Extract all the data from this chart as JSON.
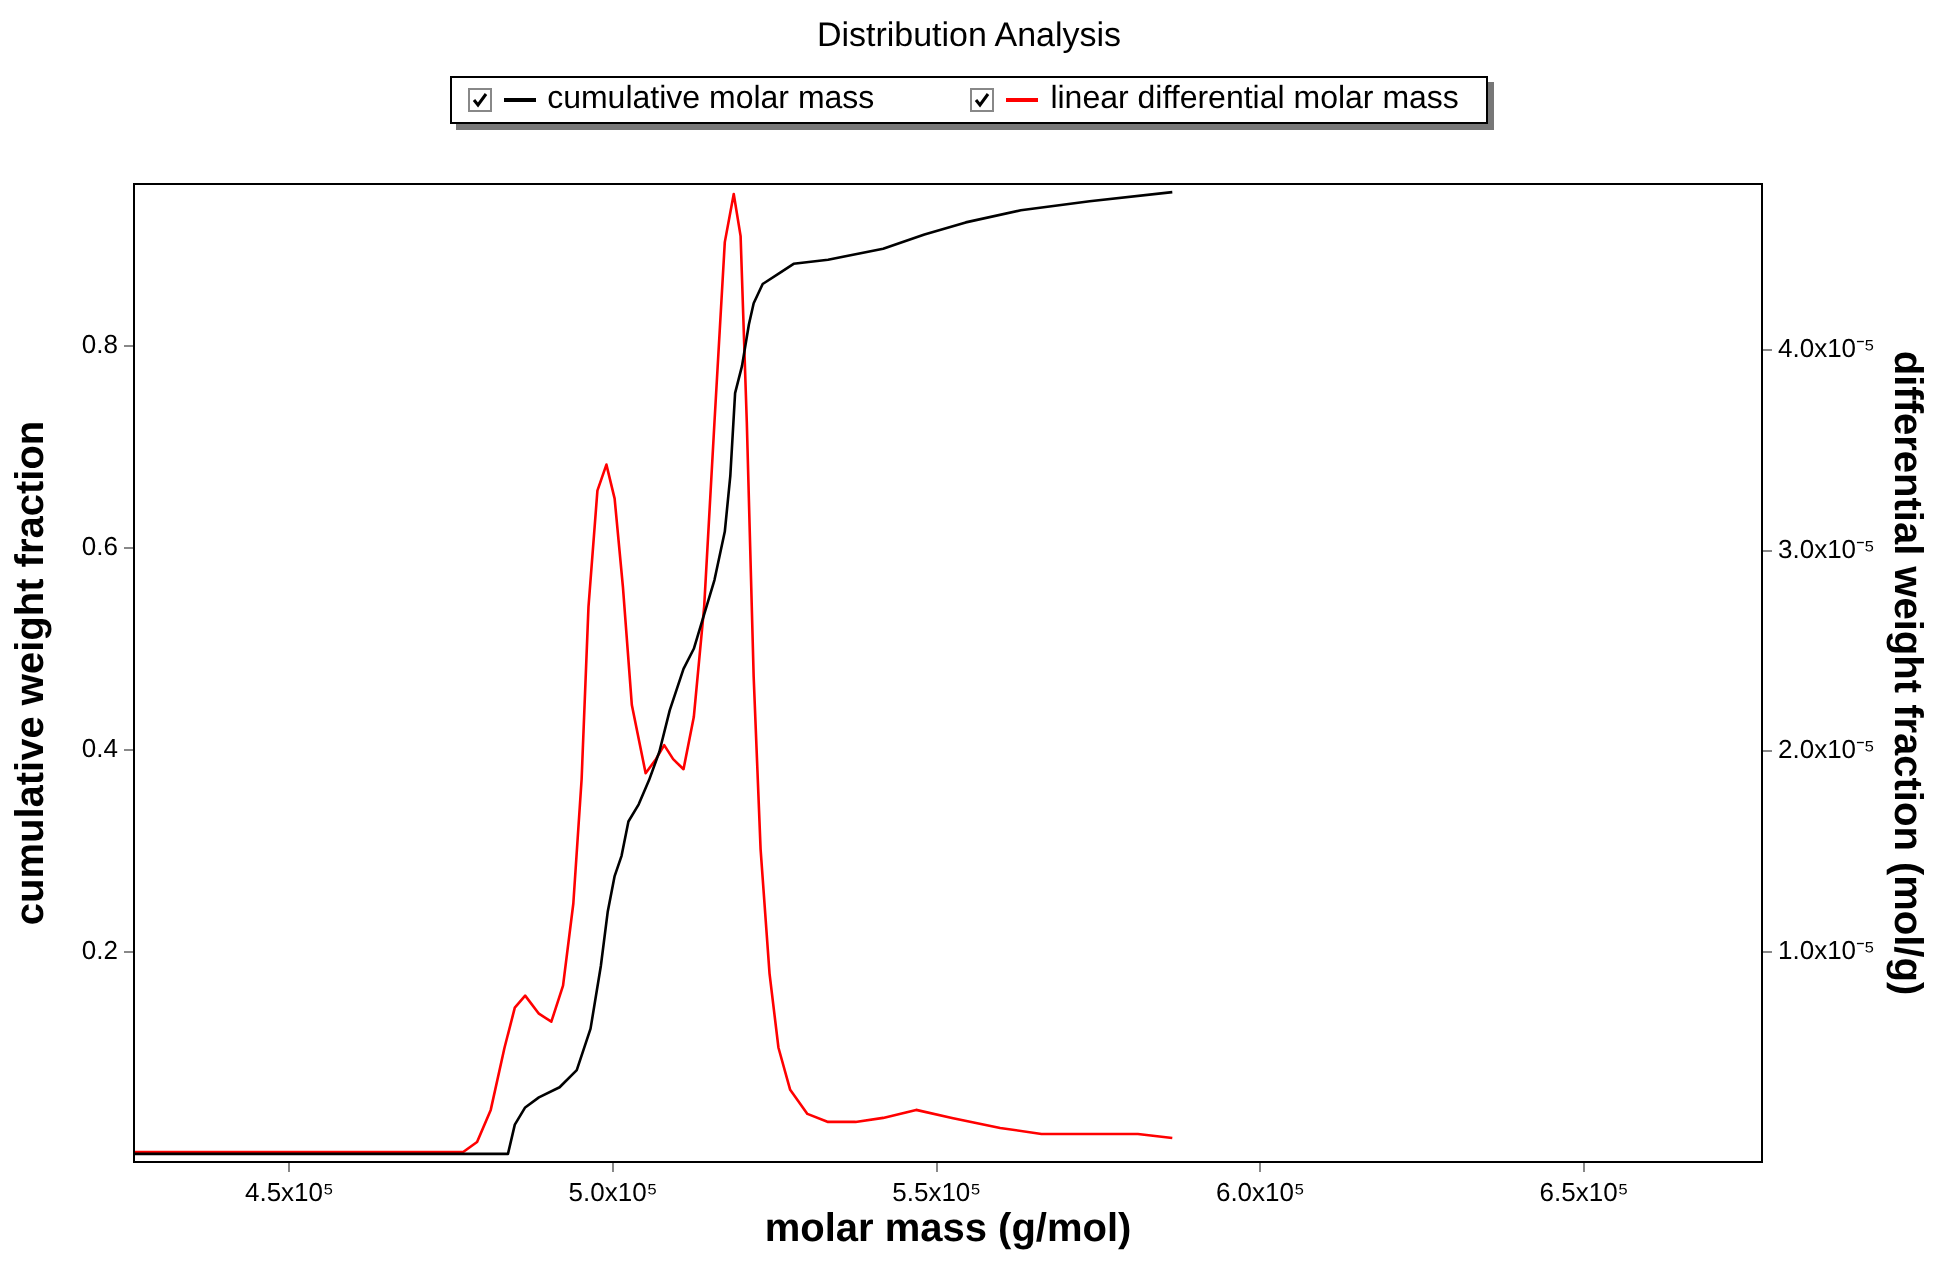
{
  "chart_data": {
    "type": "line",
    "title": "Distribution Analysis",
    "xlabel": "molar mass (g/mol)",
    "ylabel": "cumulative weight fraction",
    "y2label": "differential weight fraction (mol/g)",
    "legend": "top",
    "grid": false,
    "marker": "none",
    "line_style": "solid",
    "xlim": [
      426000,
      677500
    ],
    "xticks": [
      {
        "value": 450000,
        "label": "4.5x10⁵"
      },
      {
        "value": 500000,
        "label": "5.0x10⁵"
      },
      {
        "value": 550000,
        "label": "5.5x10⁵"
      },
      {
        "value": 600000,
        "label": "6.0x10⁵"
      },
      {
        "value": 650000,
        "label": "6.5x10⁵"
      }
    ],
    "ylim": [
      -0.008,
      0.96
    ],
    "yticks": [
      0.2,
      0.4,
      0.6,
      0.8
    ],
    "y2lim": [
      -5e-07,
      4.83e-05
    ],
    "y2ticks": [
      {
        "value": 1e-05,
        "label": "1.0x10⁻⁵"
      },
      {
        "value": 2e-05,
        "label": "2.0x10⁻⁵"
      },
      {
        "value": 3e-05,
        "label": "3.0x10⁻⁵"
      },
      {
        "value": 4e-05,
        "label": "4.0x10⁻⁵"
      }
    ],
    "series": [
      {
        "name": "cumulative molar mass",
        "color": "#000000",
        "x": [
          426000,
          483770,
          484830,
          486430,
          488550,
          491750,
          494400,
          496530,
          498120,
          499190,
          500250,
          501320,
          502380,
          503970,
          505570,
          507160,
          508760,
          510890,
          512480,
          514080,
          515670,
          517270,
          518120,
          518860,
          519930,
          520990,
          521730,
          523120,
          525770,
          527900,
          533220,
          541730,
          548110,
          554490,
          563000,
          573630,
          586400
        ],
        "values": [
          0,
          0,
          0.029,
          0.046,
          0.056,
          0.066,
          0.083,
          0.124,
          0.186,
          0.24,
          0.275,
          0.295,
          0.329,
          0.346,
          0.37,
          0.398,
          0.439,
          0.48,
          0.5,
          0.534,
          0.568,
          0.616,
          0.671,
          0.753,
          0.78,
          0.821,
          0.842,
          0.861,
          0.872,
          0.881,
          0.885,
          0.896,
          0.91,
          0.922,
          0.934,
          0.943,
          0.952
        ]
      },
      {
        "name": "linear differential molar mass",
        "color": "#ff0000",
        "axis": "y2",
        "x": [
          426000,
          476856,
          479000,
          481110,
          483236,
          484830,
          486430,
          488550,
          490470,
          492280,
          493870,
          495150,
          496210,
          497590,
          498980,
          500250,
          501530,
          502910,
          505040,
          506630,
          507910,
          509290,
          510890,
          512480,
          514080,
          515670,
          517270,
          518650,
          519710,
          520670,
          521730,
          522800,
          524180,
          525560,
          527370,
          530030,
          533220,
          537470,
          541730,
          546830,
          552360,
          559810,
          566190,
          581080,
          586400
        ],
        "values": [
          0,
          0,
          5e-07,
          2.1e-06,
          5.2e-06,
          7.2e-06,
          7.8e-06,
          6.9e-06,
          6.5e-06,
          8.3e-06,
          1.24e-05,
          1.86e-05,
          2.72e-05,
          3.3e-05,
          3.43e-05,
          3.26e-05,
          2.82e-05,
          2.23e-05,
          1.89e-05,
          1.96e-05,
          2.03e-05,
          1.96e-05,
          1.91e-05,
          2.17e-05,
          2.72e-05,
          3.64e-05,
          4.54e-05,
          4.78e-05,
          4.57e-05,
          3.64e-05,
          2.37e-05,
          1.51e-05,
          8.9e-06,
          5.2e-06,
          3.1e-06,
          1.9e-06,
          1.5e-06,
          1.5e-06,
          1.7e-06,
          2.1e-06,
          1.7e-06,
          1.2e-06,
          9e-07,
          9e-07,
          7e-07
        ]
      }
    ]
  }
}
